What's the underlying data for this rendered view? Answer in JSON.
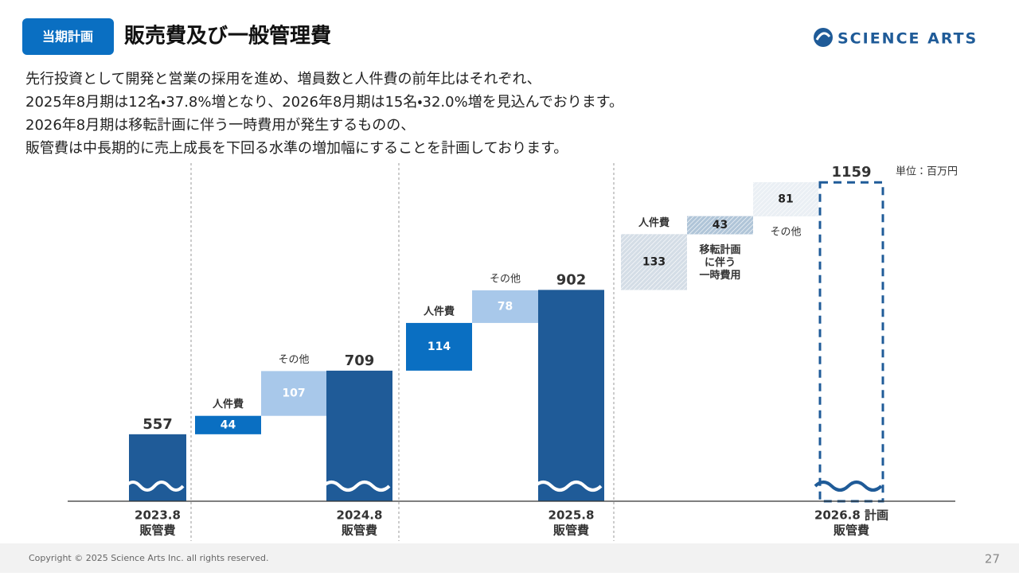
{
  "header": {
    "badge": "当期計画",
    "title": "販売費及び一般管理費",
    "logo": "SCIENCE ARTS"
  },
  "description": [
    "先行投資として開発と営業の採用を進め、増員数と人件費の前年比はそれぞれ、",
    "2025年8月期は12名・37.8%増となり、2026年8月期は15名・32.0%増を見込んでおります。",
    "2026年8月期は移転計画に伴う一時費用が発生するものの、",
    "販管費は中長期的に売上成長を下回る水準の増加幅にすることを計画しております。"
  ],
  "chart_data": {
    "type": "waterfall",
    "unit": "単位：百万円",
    "ylim": [
      397,
      1205
    ],
    "broken_axis": true,
    "bars": [
      {
        "kind": "total",
        "label": [
          "2023.8",
          "販管費"
        ],
        "value": 557,
        "color": "#1f5b98"
      },
      {
        "kind": "delta",
        "label": [
          "人件費"
        ],
        "value": 44,
        "color": "#0a6fc2"
      },
      {
        "kind": "delta",
        "label": [
          "その他"
        ],
        "value": 107,
        "color": "#a8c8ea"
      },
      {
        "kind": "total",
        "label": [
          "2024.8",
          "販管費"
        ],
        "value": 709,
        "color": "#1f5b98"
      },
      {
        "kind": "delta",
        "label": [
          "人件費"
        ],
        "value": 114,
        "color": "#0a6fc2"
      },
      {
        "kind": "delta",
        "label": [
          "その他"
        ],
        "value": 78,
        "color": "#a8c8ea"
      },
      {
        "kind": "total",
        "label": [
          "2025.8",
          "販管費"
        ],
        "value": 902,
        "color": "#1f5b98"
      },
      {
        "kind": "plan-delta",
        "label": [
          "人件費"
        ],
        "value": 133,
        "color": "#9fb3c8"
      },
      {
        "kind": "plan-delta",
        "label": [
          "移転計画",
          "に伴う",
          "一時費用"
        ],
        "value": 43,
        "color": "#4f7ea8"
      },
      {
        "kind": "plan-delta",
        "label": [
          "その他"
        ],
        "value": 81,
        "color": "#d0dbe6"
      },
      {
        "kind": "plan-total",
        "label": [
          "2026.8 計画",
          "販管費"
        ],
        "value": 1159,
        "color": "#1f5b98"
      }
    ]
  },
  "footer": {
    "copyright": "Copyright © 2025 Science Arts Inc. all rights reserved.",
    "page": "27"
  }
}
